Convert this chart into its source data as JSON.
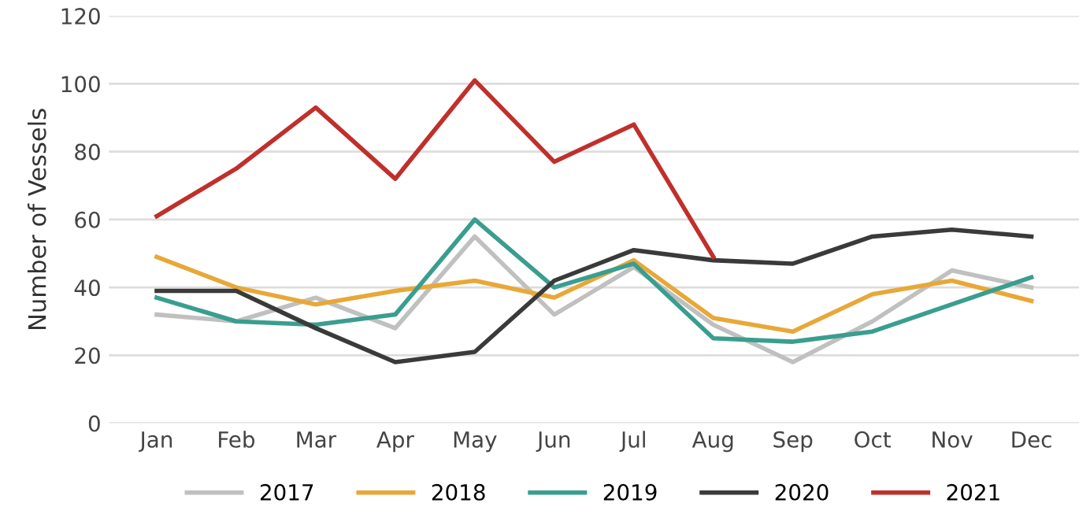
{
  "chart_data": {
    "type": "line",
    "ylabel": "Number of Vessels",
    "categories": [
      "Jan",
      "Feb",
      "Mar",
      "Apr",
      "May",
      "Jun",
      "Jul",
      "Aug",
      "Sep",
      "Oct",
      "Nov",
      "Dec"
    ],
    "series": [
      {
        "name": "2017",
        "color": "#c0c0c0",
        "values": [
          32,
          30,
          37,
          28,
          55,
          32,
          46,
          29,
          18,
          30,
          45,
          40
        ]
      },
      {
        "name": "2018",
        "color": "#e8a838",
        "values": [
          49,
          40,
          35,
          39,
          42,
          37,
          48,
          31,
          27,
          38,
          42,
          36
        ]
      },
      {
        "name": "2019",
        "color": "#3a9e8f",
        "values": [
          37,
          30,
          29,
          32,
          60,
          40,
          47,
          25,
          24,
          27,
          35,
          43
        ]
      },
      {
        "name": "2020",
        "color": "#3a3a3a",
        "values": [
          39,
          39,
          28,
          18,
          21,
          42,
          51,
          48,
          47,
          55,
          57,
          55
        ]
      },
      {
        "name": "2021",
        "color": "#c0302b",
        "values": [
          61,
          75,
          93,
          72,
          101,
          77,
          88,
          49,
          null,
          null,
          null,
          null
        ]
      }
    ],
    "ylim": [
      0,
      120
    ],
    "yticks": [
      0,
      20,
      40,
      60,
      80,
      100,
      120
    ],
    "grid": "y",
    "legend": "bottom",
    "marker": "none",
    "line_style": "solid"
  }
}
